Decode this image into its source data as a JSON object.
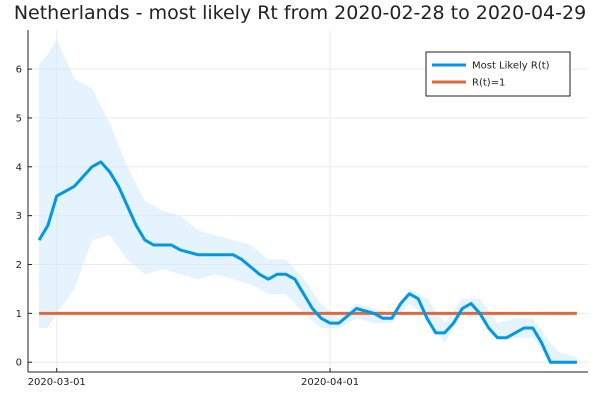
{
  "chart_data": {
    "type": "line",
    "title": "Netherlands - most likely Rt from 2020-02-28 to 2020-04-29",
    "xlabel": "",
    "ylabel": "",
    "x_start": "2020-02-28",
    "x_end": "2020-04-29",
    "xticks": [
      {
        "label": "2020-03-01",
        "date": "2020-03-01"
      },
      {
        "label": "2020-04-01",
        "date": "2020-04-01"
      }
    ],
    "yticks": [
      0,
      1,
      2,
      3,
      4,
      5,
      6
    ],
    "ylim": [
      -0.2,
      6.8
    ],
    "grid": true,
    "legend_position": "top-right",
    "series": [
      {
        "name": "Most Likely R(t)",
        "color": "#0097e6",
        "x": [
          "2020-02-28",
          "2020-02-29",
          "2020-03-01",
          "2020-03-03",
          "2020-03-05",
          "2020-03-06",
          "2020-03-07",
          "2020-03-08",
          "2020-03-10",
          "2020-03-11",
          "2020-03-12",
          "2020-03-13",
          "2020-03-14",
          "2020-03-15",
          "2020-03-17",
          "2020-03-18",
          "2020-03-19",
          "2020-03-20",
          "2020-03-21",
          "2020-03-22",
          "2020-03-24",
          "2020-03-25",
          "2020-03-26",
          "2020-03-27",
          "2020-03-28",
          "2020-03-29",
          "2020-03-30",
          "2020-03-31",
          "2020-04-01",
          "2020-04-02",
          "2020-04-04",
          "2020-04-06",
          "2020-04-07",
          "2020-04-08",
          "2020-04-09",
          "2020-04-10",
          "2020-04-11",
          "2020-04-12",
          "2020-04-13",
          "2020-04-14",
          "2020-04-15",
          "2020-04-16",
          "2020-04-17",
          "2020-04-18",
          "2020-04-19",
          "2020-04-20",
          "2020-04-21",
          "2020-04-22",
          "2020-04-23",
          "2020-04-24",
          "2020-04-25",
          "2020-04-26",
          "2020-04-27",
          "2020-04-28",
          "2020-04-29"
        ],
        "y": [
          2.5,
          2.8,
          3.4,
          3.6,
          4.0,
          4.1,
          3.9,
          3.6,
          2.8,
          2.5,
          2.4,
          2.4,
          2.4,
          2.3,
          2.2,
          2.2,
          2.2,
          2.2,
          2.2,
          2.1,
          1.8,
          1.7,
          1.8,
          1.8,
          1.7,
          1.4,
          1.1,
          0.9,
          0.8,
          0.8,
          1.1,
          1.0,
          0.9,
          0.9,
          1.2,
          1.4,
          1.3,
          0.9,
          0.6,
          0.6,
          0.8,
          1.1,
          1.2,
          1.0,
          0.7,
          0.5,
          0.5,
          0.6,
          0.7,
          0.7,
          0.4,
          0.0,
          0.0,
          0.0,
          0.0
        ]
      },
      {
        "name": "R(t)=1",
        "color": "#e0683d",
        "x": [
          "2020-02-28",
          "2020-04-29"
        ],
        "y": [
          1,
          1
        ]
      }
    ],
    "band": {
      "color": "#cde9fb",
      "x": [
        "2020-02-28",
        "2020-02-29",
        "2020-03-01",
        "2020-03-03",
        "2020-03-05",
        "2020-03-07",
        "2020-03-09",
        "2020-03-11",
        "2020-03-13",
        "2020-03-15",
        "2020-03-17",
        "2020-03-19",
        "2020-03-21",
        "2020-03-23",
        "2020-03-25",
        "2020-03-27",
        "2020-03-29",
        "2020-03-31",
        "2020-04-02",
        "2020-04-04",
        "2020-04-06",
        "2020-04-08",
        "2020-04-10",
        "2020-04-12",
        "2020-04-14",
        "2020-04-16",
        "2020-04-18",
        "2020-04-20",
        "2020-04-22",
        "2020-04-24",
        "2020-04-26",
        "2020-04-27",
        "2020-04-29"
      ],
      "upper": [
        6.1,
        6.3,
        6.6,
        5.8,
        5.6,
        4.9,
        4.0,
        3.3,
        3.1,
        3.0,
        2.7,
        2.6,
        2.5,
        2.4,
        2.1,
        2.1,
        1.7,
        1.2,
        0.9,
        1.2,
        1.1,
        1.0,
        1.5,
        1.3,
        0.8,
        1.3,
        1.3,
        0.8,
        0.9,
        0.9,
        0.4,
        0.2,
        0.1
      ],
      "lower": [
        0.7,
        0.7,
        1.0,
        1.5,
        2.5,
        2.6,
        2.1,
        1.8,
        1.9,
        1.8,
        1.7,
        1.8,
        1.7,
        1.6,
        1.4,
        1.4,
        1.0,
        0.7,
        0.7,
        0.9,
        0.8,
        0.8,
        1.2,
        0.9,
        0.4,
        1.0,
        0.9,
        0.5,
        0.5,
        0.5,
        0.0,
        0.0,
        0.0
      ]
    }
  }
}
